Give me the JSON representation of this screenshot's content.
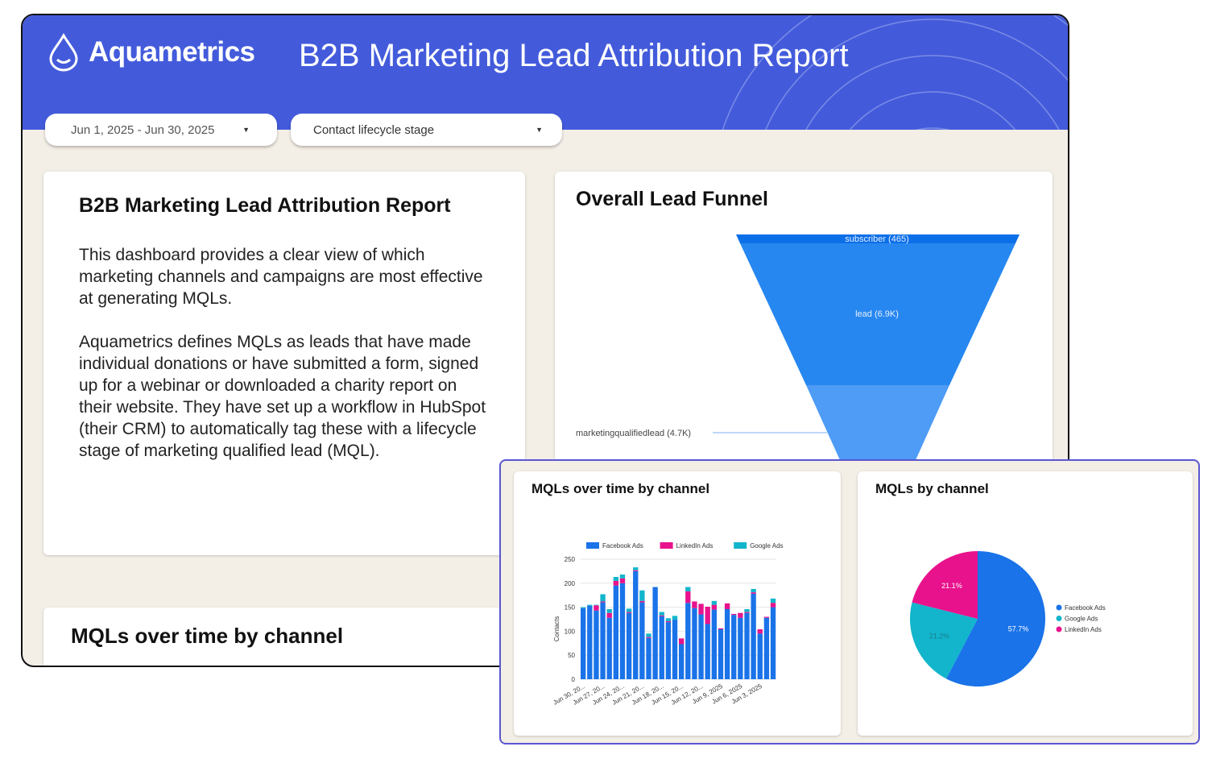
{
  "header": {
    "brand": "Aquametrics",
    "title": "B2B Marketing Lead Attribution Report",
    "accent": "#435bdb"
  },
  "filters": {
    "date_range": "Jun 1, 2025 - Jun 30, 2025",
    "lifecycle": "Contact lifecycle stage"
  },
  "intro": {
    "title": "B2B Marketing Lead Attribution Report",
    "p1": "This dashboard provides a clear view of which marketing channels and campaigns are most effective at generating MQLs.",
    "p2": "Aquametrics defines MQLs as leads that have made individual donations or have submitted a form, signed up for a webinar or downloaded a charity report on their website. They have set up a workflow in HubSpot (their CRM) to automatically tag these with a lifecycle stage of marketing qualified lead (MQL)."
  },
  "funnel": {
    "title": "Overall Lead Funnel",
    "stages": [
      {
        "label": "subscriber (465)",
        "value": 465
      },
      {
        "label": "lead (6.9K)",
        "value": 6900
      },
      {
        "label": "marketingqualifiedlead (4.7K)",
        "value": 4700
      }
    ]
  },
  "bottom_card": {
    "title": "MQLs over time by channel"
  },
  "chart_data": [
    {
      "type": "bar",
      "stacked": true,
      "title": "MQLs over time by channel",
      "ylabel": "Contacts",
      "ylim": [
        0,
        250
      ],
      "yticks": [
        0,
        50,
        100,
        150,
        200,
        250
      ],
      "categories": [
        "Jun 30, 2025",
        "Jun 29, 2025",
        "Jun 28, 2025",
        "Jun 27, 2025",
        "Jun 26, 2025",
        "Jun 25, 2025",
        "Jun 24, 2025",
        "Jun 23, 2025",
        "Jun 22, 2025",
        "Jun 21, 2025",
        "Jun 20, 2025",
        "Jun 19, 2025",
        "Jun 18, 2025",
        "Jun 17, 2025",
        "Jun 16, 2025",
        "Jun 15, 2025",
        "Jun 14, 2025",
        "Jun 13, 2025",
        "Jun 12, 2025",
        "Jun 11, 2025",
        "Jun 10, 2025",
        "Jun 9, 2025",
        "Jun 8, 2025",
        "Jun 7, 2025",
        "Jun 6, 2025",
        "Jun 5, 2025",
        "Jun 4, 2025",
        "Jun 3, 2025",
        "Jun 2, 2025",
        "Jun 1, 2025"
      ],
      "xtick_labels": [
        "Jun 30, 20...",
        "Jun 27, 20...",
        "Jun 24, 20...",
        "Jun 21, 20...",
        "Jun 18, 20...",
        "Jun 15, 20...",
        "Jun 12, 20...",
        "Jun 9, 2025",
        "Jun 6, 2025",
        "Jun 3, 2025"
      ],
      "series": [
        {
          "name": "Facebook Ads",
          "color": "#1a73e8",
          "values": [
            148,
            153,
            143,
            160,
            128,
            195,
            200,
            138,
            225,
            160,
            86,
            192,
            131,
            119,
            124,
            73,
            159,
            148,
            135,
            115,
            145,
            104,
            146,
            134,
            128,
            138,
            178,
            95,
            128,
            150
          ]
        },
        {
          "name": "LinkedIn Ads",
          "color": "#e8128c",
          "values": [
            0,
            0,
            11,
            2,
            10,
            10,
            10,
            2,
            2,
            3,
            2,
            0,
            2,
            2,
            0,
            12,
            24,
            14,
            22,
            36,
            10,
            2,
            12,
            2,
            10,
            2,
            3,
            9,
            2,
            9
          ]
        },
        {
          "name": "Google Ads",
          "color": "#12b5cb",
          "values": [
            2,
            2,
            1,
            15,
            8,
            8,
            8,
            7,
            6,
            22,
            7,
            0,
            7,
            6,
            8,
            0,
            9,
            0,
            0,
            0,
            8,
            0,
            0,
            0,
            0,
            6,
            7,
            0,
            0,
            9
          ]
        }
      ],
      "legend": "top"
    },
    {
      "type": "pie",
      "title": "MQLs by channel",
      "legend": "right",
      "slices": [
        {
          "name": "Facebook Ads",
          "value": 57.7,
          "label": "57.7%",
          "color": "#1a73e8"
        },
        {
          "name": "Google Ads",
          "value": 21.2,
          "label": "21.2%",
          "color": "#12b5cb"
        },
        {
          "name": "LinkedIn Ads",
          "value": 21.1,
          "label": "21.1%",
          "color": "#e8128c"
        }
      ]
    }
  ]
}
